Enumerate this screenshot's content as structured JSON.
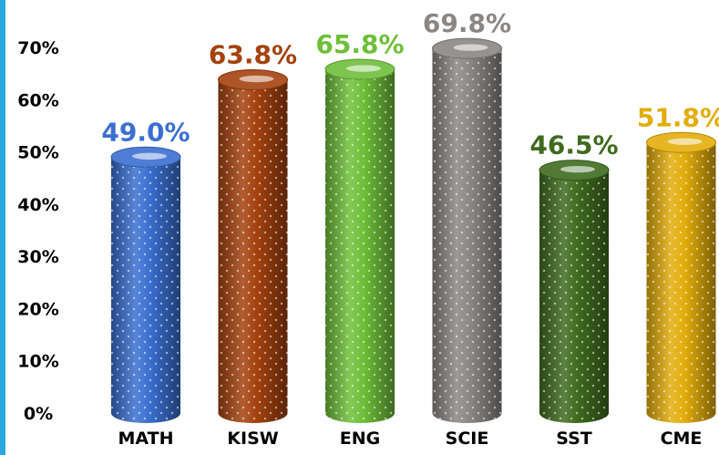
{
  "chart_data": {
    "type": "bar",
    "title": "",
    "xlabel": "",
    "ylabel": "",
    "categories": [
      "MATH",
      "KISW",
      "ENG",
      "SCIE",
      "SST",
      "CME"
    ],
    "values": [
      49.0,
      63.8,
      65.8,
      69.8,
      46.5,
      51.8
    ],
    "value_labels": [
      "49.0%",
      "63.8%",
      "65.8%",
      "69.8%",
      "46.5%",
      "51.8%"
    ],
    "colors": [
      "#3b6fd0",
      "#a4420e",
      "#6fbf3a",
      "#8a8684",
      "#3f6b1f",
      "#e2ad0b"
    ],
    "ylim": [
      0,
      70
    ],
    "yticks": [
      0,
      10,
      20,
      30,
      40,
      50,
      60,
      70
    ],
    "ytick_labels": [
      "0%",
      "10%",
      "20%",
      "30%",
      "40%",
      "50%",
      "60%",
      "70%"
    ],
    "grid": false,
    "legend": "none",
    "accent_bar_color": "#29a8e0"
  }
}
